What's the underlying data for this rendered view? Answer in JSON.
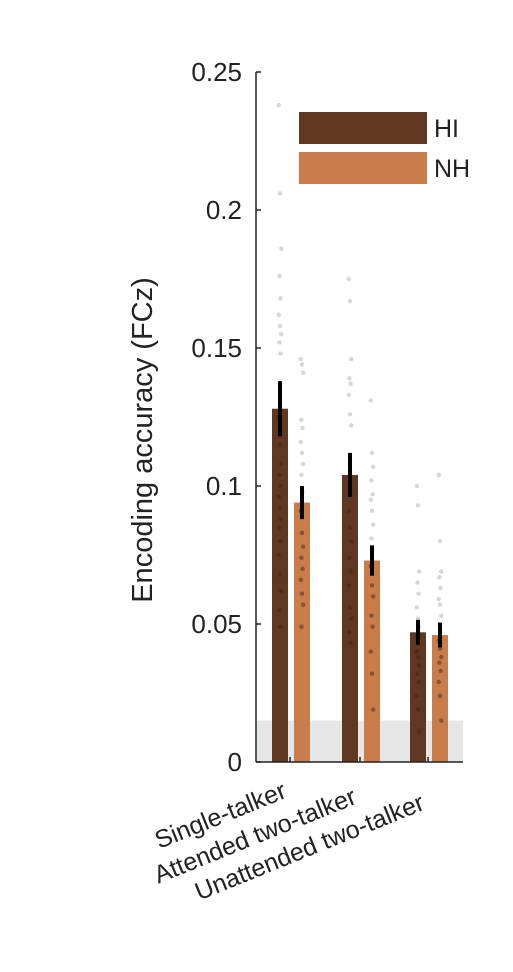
{
  "chart_data": {
    "type": "bar",
    "ylabel": "Encoding accuracy (FCz)",
    "ylim": [
      0,
      0.25
    ],
    "yticks": [
      0,
      0.05,
      0.1,
      0.15,
      0.2,
      0.25
    ],
    "ytick_labels": [
      "0",
      "0.05",
      "0.1",
      "0.15",
      "0.2",
      "0.25"
    ],
    "categories": [
      "Single-talker",
      "Attended two-talker",
      "Unattended two-talker"
    ],
    "noise_floor": 0.015,
    "legend_position": "top-right",
    "series": [
      {
        "name": "HI",
        "color": "#603822",
        "values": [
          0.128,
          0.104,
          0.047
        ],
        "errors": [
          0.01,
          0.008,
          0.0045
        ],
        "points": [
          [
            0.238,
            0.206,
            0.186,
            0.176,
            0.168,
            0.162,
            0.158,
            0.155,
            0.152,
            0.148,
            0.125,
            0.115,
            0.108,
            0.104,
            0.1,
            0.096,
            0.092,
            0.088,
            0.085,
            0.08,
            0.075,
            0.068,
            0.062,
            0.055,
            0.049
          ],
          [
            0.175,
            0.167,
            0.146,
            0.139,
            0.137,
            0.133,
            0.126,
            0.122,
            0.108,
            0.098,
            0.091,
            0.085,
            0.08,
            0.074,
            0.069,
            0.064,
            0.056,
            0.052,
            0.047,
            0.043
          ],
          [
            0.1,
            0.093,
            0.069,
            0.065,
            0.061,
            0.056,
            0.052,
            0.049,
            0.046,
            0.043,
            0.04,
            0.038,
            0.035,
            0.032,
            0.029,
            0.024,
            0.019,
            0.011
          ]
        ]
      },
      {
        "name": "NH",
        "color": "#c97d4b",
        "values": [
          0.094,
          0.073,
          0.046
        ],
        "errors": [
          0.006,
          0.0055,
          0.0045
        ],
        "points": [
          [
            0.146,
            0.144,
            0.141,
            0.124,
            0.121,
            0.116,
            0.112,
            0.108,
            0.104,
            0.098,
            0.091,
            0.083,
            0.078,
            0.074,
            0.07,
            0.066,
            0.061,
            0.057,
            0.049
          ],
          [
            0.131,
            0.112,
            0.107,
            0.102,
            0.097,
            0.095,
            0.091,
            0.086,
            0.081,
            0.077,
            0.071,
            0.064,
            0.06,
            0.053,
            0.049,
            0.04,
            0.032,
            0.019
          ],
          [
            0.104,
            0.08,
            0.069,
            0.067,
            0.063,
            0.059,
            0.057,
            0.053,
            0.05,
            0.047,
            0.044,
            0.041,
            0.038,
            0.036,
            0.033,
            0.029,
            0.024,
            0.015
          ]
        ]
      }
    ]
  }
}
